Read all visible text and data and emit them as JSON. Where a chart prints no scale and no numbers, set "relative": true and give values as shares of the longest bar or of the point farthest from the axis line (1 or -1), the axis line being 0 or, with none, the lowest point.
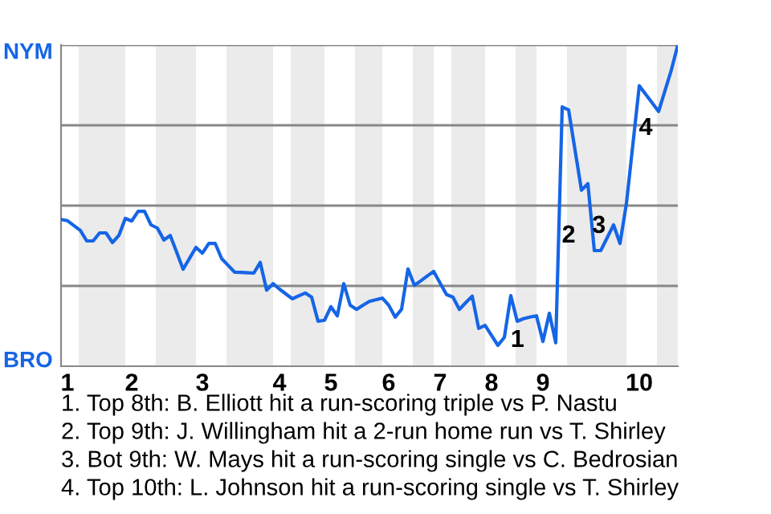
{
  "chart_data": {
    "type": "line",
    "relative": true,
    "categories": [
      null,
      "1",
      null,
      null,
      null,
      null,
      null,
      null,
      null,
      null,
      null,
      "2",
      null,
      null,
      null,
      null,
      null,
      null,
      null,
      null,
      null,
      null,
      "3",
      null,
      null,
      null,
      null,
      null,
      null,
      null,
      null,
      null,
      null,
      null,
      "4",
      null,
      null,
      null,
      null,
      null,
      null,
      null,
      "5",
      null,
      null,
      null,
      null,
      null,
      null,
      null,
      null,
      "6",
      null,
      null,
      null,
      null,
      null,
      null,
      null,
      "7",
      null,
      null,
      null,
      null,
      null,
      null,
      null,
      "8",
      null,
      null,
      null,
      null,
      null,
      null,
      null,
      "9",
      null,
      null,
      null,
      null,
      null,
      null,
      null,
      null,
      null,
      null,
      null,
      null,
      null,
      null,
      "10",
      null,
      null,
      null,
      null,
      null,
      null
    ],
    "series": [
      {
        "color": "#1565e6",
        "values": [
          0.457,
          0.453,
          0.438,
          0.423,
          0.39,
          0.39,
          0.415,
          0.415,
          0.385,
          0.407,
          0.46,
          0.452,
          0.482,
          0.482,
          0.44,
          0.43,
          0.393,
          0.407,
          0.355,
          0.302,
          0.336,
          0.37,
          0.352,
          0.382,
          0.382,
          0.335,
          0.314,
          0.293,
          0.292,
          0.291,
          0.29,
          0.323,
          0.237,
          0.257,
          0.24,
          0.225,
          0.21,
          0.219,
          0.228,
          0.215,
          0.14,
          0.143,
          0.185,
          0.157,
          0.257,
          0.19,
          0.177,
          0.19,
          0.202,
          0.207,
          0.212,
          0.19,
          0.153,
          0.177,
          0.303,
          0.252,
          0.266,
          0.281,
          0.295,
          0.259,
          0.223,
          0.215,
          0.177,
          0.198,
          0.218,
          0.118,
          0.127,
          0.096,
          0.065,
          0.09,
          0.22,
          0.14,
          0.148,
          0.153,
          0.157,
          0.077,
          0.165,
          0.073,
          0.807,
          0.798,
          0.673,
          0.548,
          0.568,
          0.36,
          0.36,
          0.4,
          0.44,
          0.382,
          0.507,
          0.69,
          0.873,
          0.846,
          0.82,
          0.793,
          0.858,
          0.923,
          1.0
        ],
        "line_style": "solid"
      }
    ],
    "ref_lines": [
      {
        "axis": "y",
        "value": 0.25,
        "color": "#888888"
      },
      {
        "axis": "y",
        "value": 0.5,
        "color": "#888888"
      },
      {
        "axis": "y",
        "value": 0.75,
        "color": "#888888"
      },
      {
        "axis": "y",
        "value": 1,
        "color": "#888888"
      }
    ],
    "annotations": [
      "NYM",
      "BRO",
      "1",
      "2",
      "3",
      "4",
      "1. Top 8th: B. Elliott hit a run-scoring triple vs P. Nastu",
      "2. Top 9th: J. Willingham hit a 2-run home run vs T. Shirley",
      "3. Bot 9th: W. Mays hit a run-scoring single vs C. Bedrosian",
      "4. Top 10th: L. Johnson hit a run-scoring single vs T. Shirley"
    ],
    "marker": "none"
  }
}
